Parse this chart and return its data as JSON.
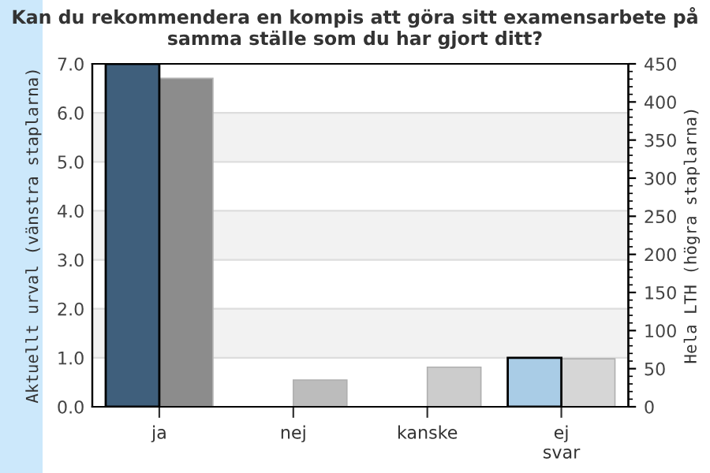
{
  "chart_data": {
    "type": "bar",
    "title": "Kan du rekommendera en kompis att göra sitt examensarbete på samma ställe som du har gjort ditt?",
    "ylabel": "Aktuellt urval (vänstra staplarna)",
    "y2label": "Hela LTH (högra staplarna)",
    "categories": [
      "ja",
      "nej",
      "kanske",
      "ej svar"
    ],
    "series": [
      {
        "colors": [
          "#3f5f7c",
          "#3f5f7c",
          "#3f5f7c",
          "#a9cce6"
        ],
        "values": [
          7.0,
          0,
          0,
          1.0
        ]
      },
      {
        "axis": "y2",
        "colors": [
          "#8c8c8c",
          "#bcbcbc",
          "#cccccc",
          "#d6d6d6"
        ],
        "values": [
          431,
          35,
          52,
          63
        ]
      }
    ],
    "ylim": [
      0,
      7
    ],
    "yticks": [
      {
        "value": 0,
        "label": "0.0"
      },
      {
        "value": 1,
        "label": "1.0"
      },
      {
        "value": 2,
        "label": "2.0"
      },
      {
        "value": 3,
        "label": "3.0"
      },
      {
        "value": 4,
        "label": "4.0"
      },
      {
        "value": 5,
        "label": "5.0"
      },
      {
        "value": 6,
        "label": "6.0"
      },
      {
        "value": 7,
        "label": "7.0"
      }
    ],
    "y2lim": [
      0,
      450
    ],
    "y2ticks": [
      0,
      50,
      100,
      150,
      200,
      250,
      300,
      350,
      400,
      450
    ],
    "bands": [
      {
        "axis": "y",
        "from": 1,
        "to": 2,
        "color": "#f2f2f2"
      },
      {
        "axis": "y",
        "from": 3,
        "to": 4,
        "color": "#f2f2f2"
      },
      {
        "axis": "y",
        "from": 5,
        "to": 6,
        "color": "#f2f2f2"
      }
    ],
    "grid": "y",
    "legend": false
  }
}
